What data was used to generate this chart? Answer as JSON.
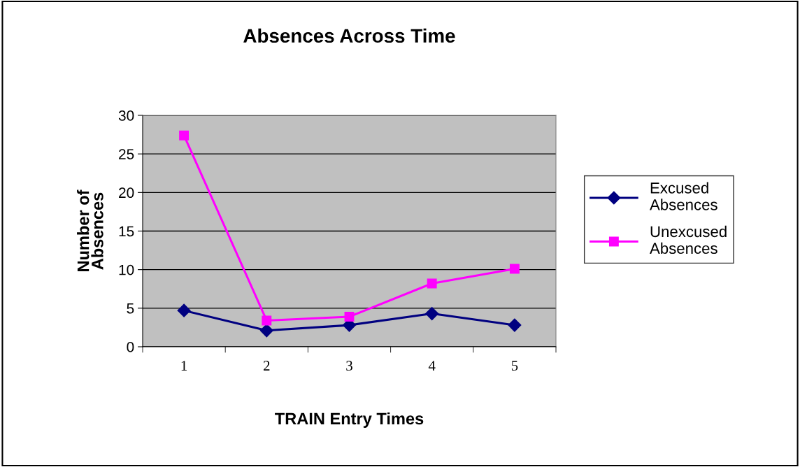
{
  "chart_data": {
    "type": "line",
    "title": "Absences Across Time",
    "xlabel": "TRAIN Entry Times",
    "ylabel": "Number of\nAbsences",
    "categories": [
      "1",
      "2",
      "3",
      "4",
      "5"
    ],
    "series": [
      {
        "name": "Excused Absences",
        "color": "#000080",
        "values": [
          4.7,
          2.1,
          2.8,
          4.3,
          2.8
        ],
        "marker": "diamond"
      },
      {
        "name": "Unexcused Absences",
        "color": "#ff00ff",
        "values": [
          27.4,
          3.4,
          3.9,
          8.2,
          10.1
        ],
        "marker": "square"
      }
    ],
    "ylim": [
      0,
      30
    ],
    "yticks": [
      0,
      5,
      10,
      15,
      20,
      25,
      30
    ],
    "grid": "y",
    "legend": "right",
    "line_style": "solid"
  }
}
